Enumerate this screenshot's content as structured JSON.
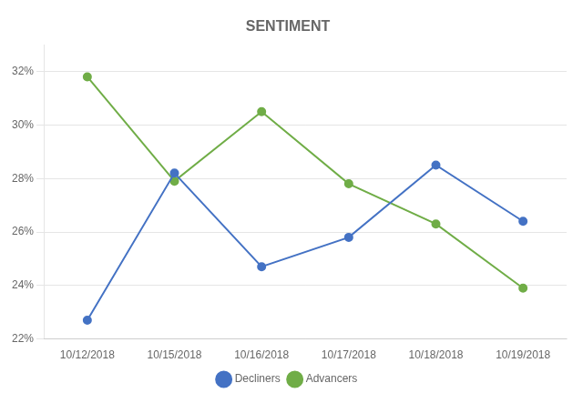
{
  "chart_data": {
    "type": "line",
    "title": "SENTIMENT",
    "categories": [
      "10/12/2018",
      "10/15/2018",
      "10/16/2018",
      "10/17/2018",
      "10/18/2018",
      "10/19/2018"
    ],
    "series": [
      {
        "name": "Decliners",
        "color": "#4472c4",
        "marker": "circle",
        "values": [
          22.7,
          28.2,
          24.7,
          25.8,
          28.5,
          26.4
        ]
      },
      {
        "name": "Advancers",
        "color": "#70ad47",
        "marker": "circle",
        "values": [
          31.8,
          27.9,
          30.5,
          27.8,
          26.3,
          23.9
        ]
      }
    ],
    "ylim": [
      22,
      33
    ],
    "yticks": [
      {
        "value": 22,
        "label": "22%"
      },
      {
        "value": 24,
        "label": "24%"
      },
      {
        "value": 26,
        "label": "26%"
      },
      {
        "value": 28,
        "label": "28%"
      },
      {
        "value": 30,
        "label": "30%"
      },
      {
        "value": 32,
        "label": "32%"
      }
    ],
    "grid": true,
    "legend": "bottom"
  }
}
